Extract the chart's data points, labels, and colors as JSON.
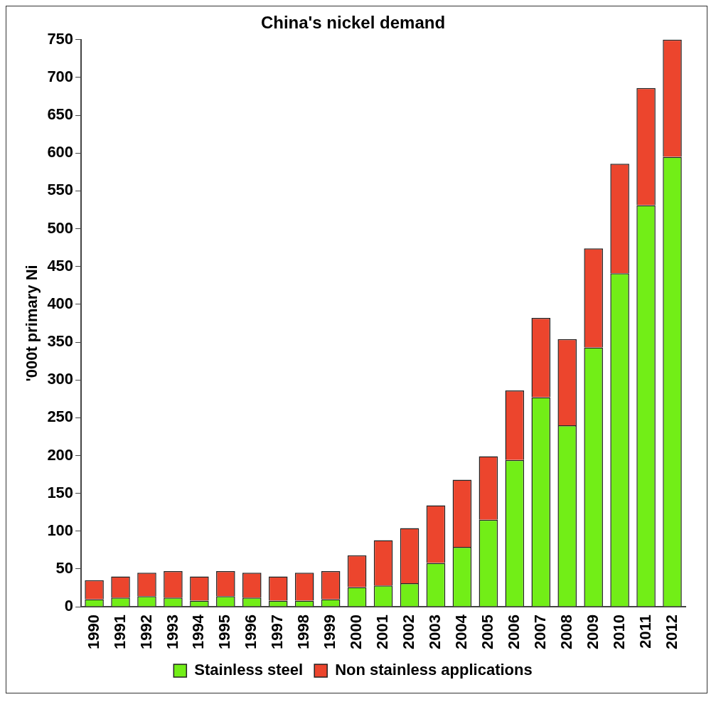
{
  "chart_data": {
    "type": "bar",
    "title": "China's nickel demand",
    "ylabel": "'000t primary Ni",
    "categories": [
      "1990",
      "1991",
      "1992",
      "1993",
      "1994",
      "1995",
      "1996",
      "1997",
      "1998",
      "1999",
      "2000",
      "2001",
      "2002",
      "2003",
      "2004",
      "2005",
      "2006",
      "2007",
      "2008",
      "2009",
      "2010",
      "2011",
      "2012"
    ],
    "stacked": true,
    "ylim": [
      0,
      750
    ],
    "yticks": [
      0,
      50,
      100,
      150,
      200,
      250,
      300,
      350,
      400,
      450,
      500,
      550,
      600,
      650,
      700,
      750
    ],
    "grid": false,
    "legend": "bottom",
    "series": [
      {
        "name": "Stainless steel",
        "color": "#72ee17",
        "values": [
          10,
          12,
          14,
          12,
          8,
          14,
          12,
          8,
          8,
          10,
          26,
          28,
          31,
          58,
          79,
          115,
          194,
          277,
          240,
          343,
          441,
          531,
          595
        ]
      },
      {
        "name": "Non stainless applications",
        "color": "#ec452d",
        "values": [
          25,
          28,
          31,
          35,
          32,
          33,
          33,
          32,
          37,
          37,
          42,
          60,
          73,
          76,
          89,
          84,
          92,
          105,
          114,
          131,
          145,
          155,
          155
        ]
      }
    ]
  }
}
